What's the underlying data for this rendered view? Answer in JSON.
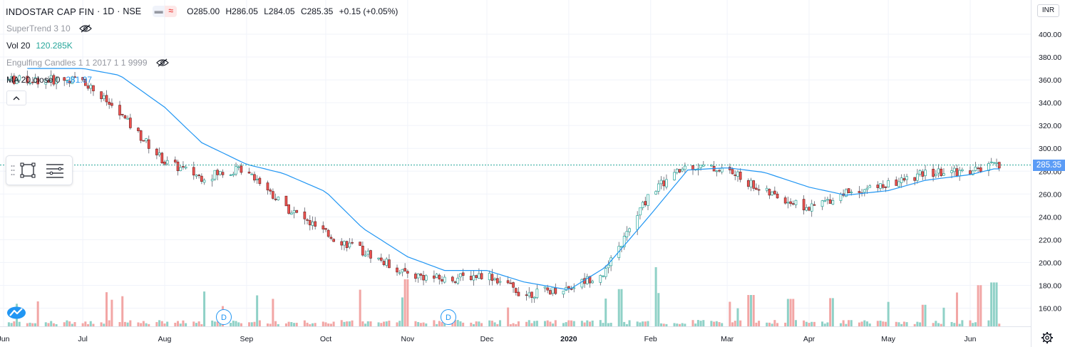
{
  "symbol": {
    "name": "INDOSTAR CAP FIN",
    "interval": "1D",
    "exchange": "NSE",
    "separator": "·"
  },
  "ohlc": {
    "o_label": "O",
    "o": "285.00",
    "h_label": "H",
    "h": "286.05",
    "l_label": "L",
    "l": "284.05",
    "c_label": "C",
    "c": "285.35",
    "change": "+0.15 (+0.05%)"
  },
  "indicators": {
    "supertrend": {
      "label": "SuperTrend 3 10",
      "visible": false
    },
    "volume": {
      "label": "Vol 20",
      "value": "120.285K"
    },
    "engulfing": {
      "label": "Engulfing Candles 1 1 2017 1 1 9999",
      "visible": false
    },
    "ma": {
      "label": "MA 20 close 0",
      "value": "281.97"
    }
  },
  "price_axis": {
    "currency": "INR",
    "ticks": [
      "400.00",
      "380.00",
      "360.00",
      "340.00",
      "320.00",
      "300.00",
      "280.00",
      "260.00",
      "240.00",
      "220.00",
      "200.00",
      "180.00",
      "160.00"
    ],
    "last_price": "285.35"
  },
  "time_axis": {
    "labels": [
      "Jun",
      "Jul",
      "Aug",
      "Sep",
      "Oct",
      "Nov",
      "Dec",
      "2020",
      "Feb",
      "Mar",
      "Apr",
      "May",
      "Jun"
    ]
  },
  "dividend_markers": [
    "D",
    "D"
  ],
  "colors": {
    "up": "#26a69a",
    "down": "#ef5350",
    "ma": "#2196f3",
    "grid": "#f0f3fa",
    "axis_text": "#131722",
    "price_line": "#26a69a"
  },
  "chart_data": {
    "type": "line",
    "title": "INDOSTAR CAP FIN · 1D · NSE",
    "ylim": [
      150,
      415
    ],
    "series": [
      {
        "name": "MA 20 close 0",
        "x": [
          "2019-07-01",
          "2019-07-15",
          "2019-08-01",
          "2019-08-15",
          "2019-09-01",
          "2019-09-15",
          "2019-10-01",
          "2019-10-15",
          "2019-11-01",
          "2019-11-15",
          "2019-12-01",
          "2019-12-15",
          "2020-01-01",
          "2020-01-15",
          "2020-02-01",
          "2020-02-15",
          "2020-03-01",
          "2020-03-15",
          "2020-04-01",
          "2020-04-15",
          "2020-05-01",
          "2020-05-15",
          "2020-06-01",
          "2020-06-10"
        ],
        "values": [
          370,
          364,
          336,
          305,
          286,
          278,
          262,
          230,
          205,
          193,
          193,
          183,
          176,
          196,
          242,
          281,
          283,
          279,
          266,
          259,
          263,
          272,
          277,
          282
        ]
      },
      {
        "name": "Close",
        "x": [
          "2019-07-01",
          "2019-07-15",
          "2019-08-01",
          "2019-08-15",
          "2019-09-01",
          "2019-09-15",
          "2019-10-01",
          "2019-10-15",
          "2019-11-01",
          "2019-11-15",
          "2019-12-01",
          "2019-12-15",
          "2020-01-01",
          "2020-01-15",
          "2020-02-01",
          "2020-02-15",
          "2020-03-01",
          "2020-03-15",
          "2020-04-01",
          "2020-04-15",
          "2020-05-01",
          "2020-05-15",
          "2020-06-01",
          "2020-06-10"
        ],
        "values": [
          360,
          330,
          288,
          275,
          283,
          250,
          225,
          210,
          190,
          185,
          190,
          172,
          178,
          192,
          262,
          285,
          281,
          262,
          247,
          262,
          268,
          278,
          280,
          285
        ]
      }
    ],
    "volume": {
      "name": "Vol 20",
      "x": [
        "2019-11-01",
        "2020-01-20",
        "2020-02-03",
        "2020-03-10",
        "2020-03-25",
        "2020-04-10",
        "2020-05-15",
        "2020-06-05",
        "2020-06-10"
      ],
      "values": [
        120,
        95,
        85,
        80,
        70,
        72,
        55,
        105,
        112
      ]
    }
  }
}
